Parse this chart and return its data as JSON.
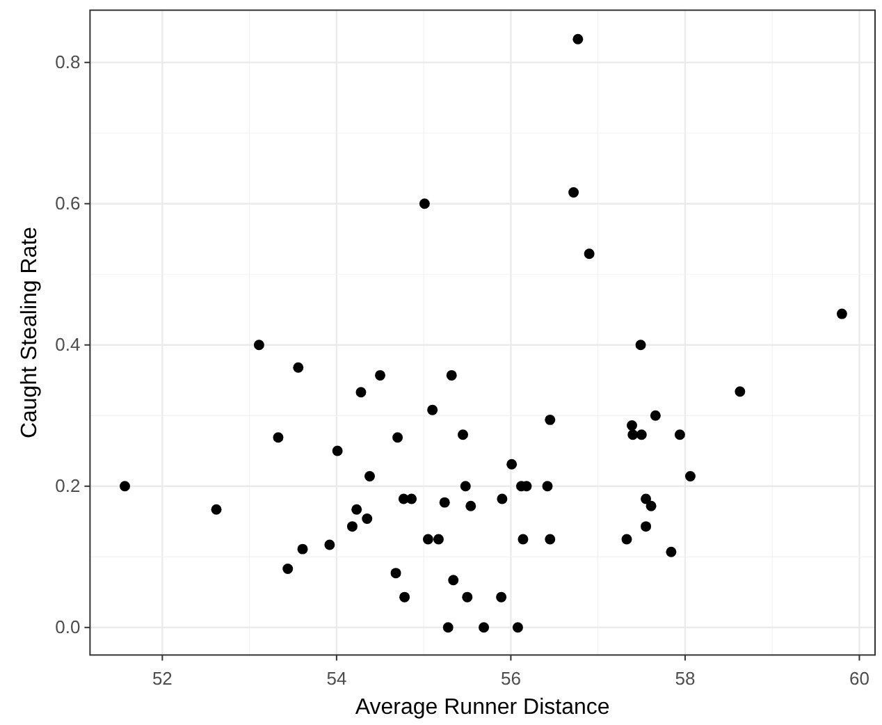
{
  "chart_data": {
    "type": "scatter",
    "xlabel": "Average Runner Distance",
    "ylabel": "Caught Stealing Rate",
    "xlim": [
      51.17,
      60.18
    ],
    "ylim": [
      -0.039,
      0.874
    ],
    "xticks": [
      52,
      54,
      56,
      58,
      60
    ],
    "yticks": [
      {
        "value": 0,
        "label": "0.0"
      },
      {
        "value": 0.2,
        "label": "0.2"
      },
      {
        "value": 0.4,
        "label": "0.4"
      },
      {
        "value": 0.6,
        "label": "0.6"
      },
      {
        "value": 0.8,
        "label": "0.8"
      }
    ],
    "grid": true,
    "marker": "circle",
    "series": [
      {
        "color": "#000000",
        "x": [
          51.57,
          52.62,
          53.11,
          53.56,
          53.33,
          54.01,
          54.28,
          54.5,
          54.38,
          54.7,
          54.77,
          54.86,
          54.23,
          54.35,
          54.18,
          53.92,
          53.61,
          53.44,
          54.68,
          54.78,
          55.1,
          55.32,
          55.45,
          55.48,
          55.24,
          55.54,
          55.05,
          55.17,
          55.34,
          55.5,
          55.28,
          55.69,
          55.89,
          56.08,
          55.9,
          56.01,
          56.12,
          56.18,
          56.42,
          56.45,
          56.14,
          56.45,
          57.49,
          58.63,
          57.39,
          57.4,
          57.5,
          57.66,
          57.94,
          58.06,
          57.55,
          57.61,
          57.55,
          57.33,
          57.84,
          56.77,
          56.72,
          56.9,
          59.8,
          55.01
        ],
        "values": [
          0.2,
          0.167,
          0.4,
          0.368,
          0.269,
          0.25,
          0.333,
          0.357,
          0.214,
          0.269,
          0.182,
          0.182,
          0.167,
          0.154,
          0.143,
          0.117,
          0.111,
          0.083,
          0.077,
          0.043,
          0.308,
          0.357,
          0.273,
          0.2,
          0.177,
          0.172,
          0.125,
          0.125,
          0.067,
          0.043,
          0.0,
          0.0,
          0.043,
          0.0,
          0.182,
          0.231,
          0.2,
          0.2,
          0.2,
          0.294,
          0.125,
          0.125,
          0.4,
          0.334,
          0.286,
          0.273,
          0.273,
          0.3,
          0.273,
          0.214,
          0.182,
          0.172,
          0.143,
          0.125,
          0.107,
          0.833,
          0.616,
          0.529,
          0.444,
          0.6
        ]
      }
    ]
  }
}
